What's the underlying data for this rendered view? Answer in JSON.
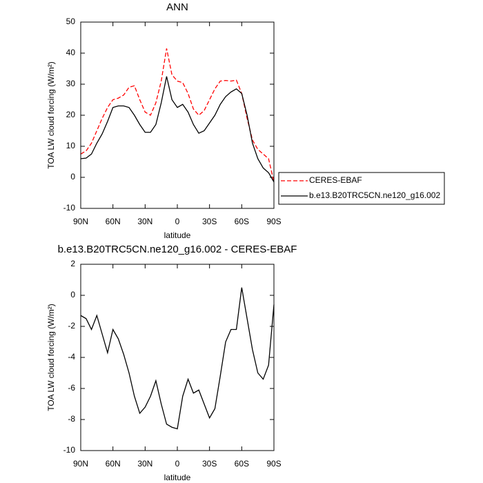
{
  "chart_data": [
    {
      "type": "line",
      "title": "ANN",
      "xlabel": "latitude",
      "ylabel": "TOA LW cloud forcing (W/m²)",
      "x": [
        90,
        85,
        80,
        75,
        70,
        65,
        60,
        55,
        50,
        45,
        40,
        35,
        30,
        25,
        20,
        15,
        10,
        5,
        0,
        -5,
        -10,
        -15,
        -20,
        -25,
        -30,
        -35,
        -40,
        -45,
        -50,
        -55,
        -60,
        -65,
        -70,
        -75,
        -80,
        -85,
        -90
      ],
      "xlim": [
        90,
        -90
      ],
      "xticks": [
        {
          "value": 90,
          "label": "90N"
        },
        {
          "value": 60,
          "label": "60N"
        },
        {
          "value": 30,
          "label": "30N"
        },
        0,
        {
          "value": -30,
          "label": "30S"
        },
        {
          "value": -60,
          "label": "60S"
        },
        {
          "value": -90,
          "label": "90S"
        }
      ],
      "ylim": [
        -10,
        50
      ],
      "yticks": [
        -10,
        0,
        10,
        20,
        30,
        40,
        50
      ],
      "legend": "right",
      "series": [
        {
          "name": "CERES-EBAF",
          "color": "#ff0000",
          "dashed": true,
          "values": [
            7.5,
            8.5,
            11,
            15,
            19,
            22.5,
            25,
            25.5,
            26.5,
            29,
            29.5,
            25,
            21,
            20,
            24,
            31,
            41.5,
            33,
            31,
            30.5,
            27,
            22,
            20,
            21.5,
            25,
            28.5,
            31,
            31.2,
            31,
            31.3,
            27,
            19,
            12,
            9,
            7.5,
            6,
            -1.5
          ]
        },
        {
          "name": "b.e13.B20TRC5CN.ne120_g16.002",
          "color": "#000000",
          "dashed": false,
          "values": [
            6,
            6.2,
            7.5,
            11,
            14,
            18,
            22.5,
            23,
            23,
            22.5,
            20,
            17,
            14.5,
            14.5,
            17,
            24,
            32.5,
            25,
            22.5,
            23.5,
            21,
            17,
            14.2,
            15,
            17.5,
            20,
            23.5,
            26,
            27.5,
            28.5,
            27,
            20,
            11,
            6,
            3,
            1.5,
            -1.5
          ]
        }
      ]
    },
    {
      "type": "line",
      "title": "b.e13.B20TRC5CN.ne120_g16.002 - CERES-EBAF",
      "xlabel": "latitude",
      "ylabel": "TOA LW cloud forcing (W/m²)",
      "x": [
        90,
        85,
        80,
        75,
        70,
        65,
        60,
        55,
        50,
        45,
        40,
        35,
        30,
        25,
        20,
        15,
        10,
        5,
        0,
        -5,
        -10,
        -15,
        -20,
        -25,
        -30,
        -35,
        -40,
        -45,
        -50,
        -55,
        -60,
        -65,
        -70,
        -75,
        -80,
        -85,
        -90
      ],
      "xlim": [
        90,
        -90
      ],
      "xticks": [
        {
          "value": 90,
          "label": "90N"
        },
        {
          "value": 60,
          "label": "60N"
        },
        {
          "value": 30,
          "label": "30N"
        },
        0,
        {
          "value": -30,
          "label": "30S"
        },
        {
          "value": -60,
          "label": "60S"
        },
        {
          "value": -90,
          "label": "90S"
        }
      ],
      "ylim": [
        -10,
        2
      ],
      "yticks": [
        -10,
        -8,
        -6,
        -4,
        -2,
        0,
        2
      ],
      "series": [
        {
          "color": "#000000",
          "dashed": false,
          "values": [
            -1.3,
            -1.5,
            -2.2,
            -1.3,
            -2.5,
            -3.7,
            -2.2,
            -2.8,
            -3.8,
            -5,
            -6.5,
            -7.6,
            -7.2,
            -6.5,
            -5.5,
            -7,
            -8.3,
            -8.5,
            -8.6,
            -6.5,
            -5.4,
            -6.3,
            -6.1,
            -7,
            -7.9,
            -7.3,
            -5.2,
            -3,
            -2.2,
            -2.2,
            0.5,
            -1.5,
            -3.5,
            -5,
            -5.4,
            -4.5,
            -0.6
          ]
        }
      ]
    }
  ]
}
